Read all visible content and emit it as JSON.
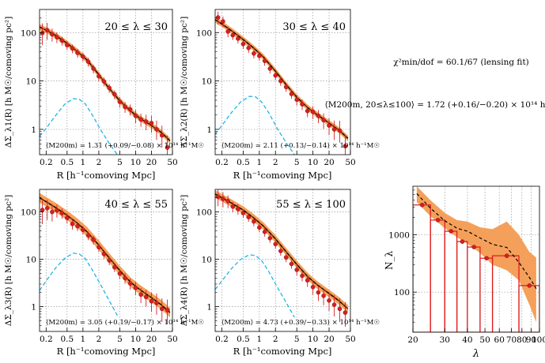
{
  "chart_data": [
    {
      "type": "line",
      "panel": "20 ≤ λ ≤ 30",
      "xlabel": "R [h⁻¹comoving Mpc]",
      "ylabel": "ΔΣ_λ1(R) [h M☉/comoving pc²]",
      "annotation": "⟨M200m⟩ = 1.31 (+0.09/−0.08) × 10¹⁴ h⁻¹M☉",
      "xscale": "log",
      "yscale": "log",
      "xlim": [
        0.15,
        50
      ],
      "ylim": [
        0.3,
        300
      ],
      "xticks": [
        "0.2",
        "0.5",
        "1",
        "2",
        "5",
        "10",
        "20",
        "50"
      ],
      "yticks": [
        "1",
        "10",
        "100"
      ],
      "grid": true,
      "points": {
        "x": [
          0.17,
          0.21,
          0.26,
          0.32,
          0.4,
          0.5,
          0.63,
          0.79,
          1.0,
          1.26,
          1.58,
          2.0,
          2.5,
          3.16,
          3.98,
          5.0,
          6.3,
          7.9,
          10,
          12.6,
          15.8,
          20,
          25,
          31.6,
          40
        ],
        "y": [
          98,
          112,
          92,
          80,
          68,
          55,
          47,
          38,
          32,
          25,
          18,
          12.5,
          9.8,
          7.2,
          5.3,
          3.7,
          2.9,
          2.6,
          1.9,
          1.6,
          1.45,
          1.35,
          1.0,
          0.75,
          0.42
        ],
        "err_lo": [
          0.25,
          0.2,
          0.15,
          0.12,
          0.1,
          0.1,
          0.1,
          0.1,
          0.1,
          0.1,
          0.1,
          0.1,
          0.1,
          0.1,
          0.1,
          0.12,
          0.12,
          0.13,
          0.15,
          0.15,
          0.18,
          0.2,
          0.22,
          0.25,
          0.35
        ],
        "err_hi": [
          0.2,
          0.15,
          0.12,
          0.1,
          0.08,
          0.08,
          0.08,
          0.08,
          0.08,
          0.08,
          0.08,
          0.08,
          0.08,
          0.08,
          0.08,
          0.1,
          0.1,
          0.1,
          0.12,
          0.12,
          0.14,
          0.15,
          0.18,
          0.2,
          0.25
        ]
      },
      "model": {
        "x": [
          0.15,
          0.2,
          0.3,
          0.5,
          0.8,
          1.2,
          2,
          3,
          5,
          8,
          12,
          20,
          30,
          45
        ],
        "y": [
          130,
          112,
          88,
          60,
          40,
          27,
          13.5,
          7.5,
          3.9,
          2.4,
          1.7,
          1.2,
          0.88,
          0.58
        ]
      },
      "band_width_dex": 0.06,
      "miscentering": {
        "x": [
          0.15,
          0.2,
          0.3,
          0.45,
          0.65,
          0.85,
          1.1,
          1.5,
          2.2,
          3.2,
          4.5
        ],
        "y": [
          0.72,
          1.05,
          1.9,
          3.3,
          4.3,
          4.2,
          3.4,
          2.0,
          0.95,
          0.5,
          0.3
        ]
      }
    },
    {
      "type": "line",
      "panel": "30 ≤ λ ≤ 40",
      "xlabel": "R [h⁻¹comoving Mpc]",
      "ylabel": "ΔΣ_λ2(R) [h M☉/comoving pc²]",
      "annotation": "⟨M200m⟩ = 2.11 (+0.13/−0.14) × 10¹⁴ h⁻¹M☉",
      "xscale": "log",
      "yscale": "log",
      "xlim": [
        0.15,
        50
      ],
      "ylim": [
        0.3,
        300
      ],
      "xticks": [
        "0.2",
        "0.5",
        "1",
        "2",
        "5",
        "10",
        "20",
        "50"
      ],
      "yticks": [
        "1",
        "10",
        "100"
      ],
      "grid": true,
      "points": {
        "x": [
          0.17,
          0.21,
          0.26,
          0.32,
          0.4,
          0.5,
          0.63,
          0.79,
          1.0,
          1.26,
          1.58,
          2.0,
          2.5,
          3.16,
          3.98,
          5.0,
          6.3,
          7.9,
          10,
          12.6,
          15.8,
          20,
          25,
          31.6,
          40
        ],
        "y": [
          205,
          170,
          105,
          88,
          75,
          58,
          48,
          37,
          33,
          26,
          18,
          13,
          10,
          7.5,
          5.4,
          4.1,
          3.3,
          2.4,
          2.3,
          1.9,
          1.55,
          1.2,
          1.0,
          0.95,
          0.45
        ],
        "err_lo": [
          0.15,
          0.12,
          0.12,
          0.1,
          0.1,
          0.1,
          0.1,
          0.1,
          0.1,
          0.1,
          0.1,
          0.1,
          0.1,
          0.1,
          0.1,
          0.12,
          0.12,
          0.13,
          0.15,
          0.15,
          0.18,
          0.2,
          0.22,
          0.25,
          0.3
        ],
        "err_hi": [
          0.12,
          0.1,
          0.1,
          0.08,
          0.08,
          0.08,
          0.08,
          0.08,
          0.08,
          0.08,
          0.08,
          0.08,
          0.08,
          0.08,
          0.08,
          0.1,
          0.1,
          0.1,
          0.12,
          0.12,
          0.14,
          0.15,
          0.18,
          0.2,
          0.22
        ]
      },
      "model": {
        "x": [
          0.15,
          0.2,
          0.3,
          0.5,
          0.8,
          1.2,
          2,
          3,
          5,
          8,
          12,
          20,
          30,
          45
        ],
        "y": [
          185,
          150,
          110,
          72,
          47,
          31,
          16,
          9,
          4.6,
          2.8,
          2.0,
          1.35,
          0.98,
          0.65
        ]
      },
      "band_width_dex": 0.06,
      "miscentering": {
        "x": [
          0.15,
          0.2,
          0.3,
          0.45,
          0.65,
          0.85,
          1.1,
          1.5,
          2.2,
          3.2,
          4.5
        ],
        "y": [
          0.8,
          1.2,
          2.2,
          3.7,
          4.8,
          4.7,
          3.7,
          2.2,
          1.0,
          0.52,
          0.3
        ]
      }
    },
    {
      "type": "line",
      "panel": "40 ≤ λ ≤ 55",
      "xlabel": "R [h⁻¹comoving Mpc]",
      "ylabel": "ΔΣ_λ3(R) [h M☉/comoving pc²]",
      "annotation": "⟨M200m⟩ = 3.05 (+0.19/−0.17) × 10¹⁴ h⁻¹M☉",
      "xscale": "log",
      "yscale": "log",
      "xlim": [
        0.15,
        50
      ],
      "ylim": [
        0.3,
        300
      ],
      "xticks": [
        "0.2",
        "0.5",
        "1",
        "2",
        "5",
        "10",
        "20",
        "50"
      ],
      "yticks": [
        "1",
        "10",
        "100"
      ],
      "grid": true,
      "points": {
        "x": [
          0.17,
          0.21,
          0.26,
          0.32,
          0.4,
          0.5,
          0.63,
          0.79,
          1.0,
          1.26,
          1.58,
          2.0,
          2.5,
          3.16,
          3.98,
          5.0,
          6.3,
          7.9,
          10,
          12.6,
          15.8,
          20,
          25,
          31.6,
          40
        ],
        "y": [
          110,
          120,
          100,
          108,
          95,
          75,
          56,
          50,
          42,
          32,
          26,
          18,
          13,
          9.5,
          6.8,
          5.0,
          4.0,
          3.1,
          2.5,
          1.8,
          1.6,
          1.3,
          1.2,
          0.9,
          0.85
        ],
        "err_lo": [
          0.3,
          0.25,
          0.2,
          0.15,
          0.12,
          0.12,
          0.12,
          0.1,
          0.1,
          0.1,
          0.1,
          0.1,
          0.1,
          0.1,
          0.1,
          0.12,
          0.12,
          0.13,
          0.15,
          0.18,
          0.2,
          0.22,
          0.25,
          0.28,
          0.3
        ],
        "err_hi": [
          0.2,
          0.18,
          0.15,
          0.12,
          0.1,
          0.1,
          0.1,
          0.08,
          0.08,
          0.08,
          0.08,
          0.08,
          0.08,
          0.08,
          0.08,
          0.1,
          0.1,
          0.1,
          0.12,
          0.14,
          0.15,
          0.18,
          0.2,
          0.22,
          0.22
        ]
      },
      "model": {
        "x": [
          0.15,
          0.2,
          0.3,
          0.5,
          0.8,
          1.2,
          2,
          3,
          5,
          8,
          12,
          20,
          30,
          45
        ],
        "y": [
          200,
          165,
          125,
          85,
          57,
          38,
          20,
          11.5,
          5.8,
          3.3,
          2.3,
          1.55,
          1.12,
          0.75
        ]
      },
      "band_width_dex": 0.1,
      "miscentering": {
        "x": [
          0.15,
          0.2,
          0.3,
          0.45,
          0.65,
          0.85,
          1.1,
          1.5,
          2.2,
          3.2,
          4.5
        ],
        "y": [
          2.2,
          3.5,
          6.5,
          10.5,
          13.5,
          13.0,
          10.5,
          6.0,
          2.8,
          1.3,
          0.65
        ]
      }
    },
    {
      "type": "line",
      "panel": "55 ≤ λ ≤ 100",
      "xlabel": "R [h⁻¹comoving Mpc]",
      "ylabel": "ΔΣ_λ4(R) [h M☉/comoving pc²]",
      "annotation": "⟨M200m⟩ = 4.73 (+0.39/−0.33) × 10¹⁴ h⁻¹M☉",
      "xscale": "log",
      "yscale": "log",
      "xlim": [
        0.15,
        50
      ],
      "ylim": [
        0.3,
        300
      ],
      "xticks": [
        "0.2",
        "0.5",
        "1",
        "2",
        "5",
        "10",
        "20",
        "50"
      ],
      "yticks": [
        "1",
        "10",
        "100"
      ],
      "grid": true,
      "points": {
        "x": [
          0.17,
          0.21,
          0.26,
          0.32,
          0.4,
          0.5,
          0.63,
          0.79,
          1.0,
          1.26,
          1.58,
          2.0,
          2.5,
          3.16,
          3.98,
          5.0,
          6.3,
          7.9,
          10,
          12.6,
          15.8,
          20,
          25,
          31.6,
          40
        ],
        "y": [
          210,
          190,
          170,
          130,
          115,
          95,
          78,
          63,
          47,
          38,
          28,
          21,
          15,
          11,
          8,
          6,
          4.5,
          3.6,
          2.6,
          2.0,
          1.7,
          1.35,
          1.1,
          0.9,
          0.75
        ],
        "err_lo": [
          0.2,
          0.18,
          0.15,
          0.12,
          0.12,
          0.1,
          0.1,
          0.1,
          0.1,
          0.1,
          0.1,
          0.1,
          0.1,
          0.1,
          0.1,
          0.12,
          0.12,
          0.14,
          0.16,
          0.18,
          0.2,
          0.22,
          0.25,
          0.28,
          0.3
        ],
        "err_hi": [
          0.15,
          0.14,
          0.12,
          0.1,
          0.1,
          0.08,
          0.08,
          0.08,
          0.08,
          0.08,
          0.08,
          0.08,
          0.08,
          0.08,
          0.08,
          0.1,
          0.1,
          0.1,
          0.12,
          0.14,
          0.15,
          0.18,
          0.2,
          0.22,
          0.22
        ]
      },
      "model": {
        "x": [
          0.15,
          0.2,
          0.3,
          0.5,
          0.8,
          1.2,
          2,
          3,
          5,
          8,
          12,
          20,
          30,
          45
        ],
        "y": [
          240,
          200,
          155,
          110,
          74,
          50,
          27,
          15.5,
          7.8,
          4.3,
          2.9,
          1.9,
          1.35,
          0.9
        ]
      },
      "band_width_dex": 0.08,
      "miscentering": {
        "x": [
          0.15,
          0.2,
          0.3,
          0.45,
          0.65,
          0.85,
          1.1,
          1.5,
          2.2,
          3.2,
          4.5
        ],
        "y": [
          2.3,
          3.5,
          6.3,
          10.0,
          12.5,
          12.0,
          9.5,
          5.5,
          2.5,
          1.2,
          0.6
        ]
      }
    },
    {
      "type": "bar",
      "panel": "richness function",
      "xlabel": "λ",
      "ylabel": "N_λ",
      "xscale": "log",
      "yscale": "log",
      "xlim": [
        20,
        100
      ],
      "ylim": [
        20,
        7000
      ],
      "xticks": [
        "20",
        "30",
        "40",
        "50",
        "60",
        "70",
        "80",
        "90",
        "100"
      ],
      "yticks": [
        "100",
        "1000"
      ],
      "grid": true,
      "bins": [
        {
          "lo": 20,
          "hi": 25,
          "value": 3300
        },
        {
          "lo": 25,
          "hi": 30,
          "value": 1800
        },
        {
          "lo": 30,
          "hi": 35,
          "value": 1150
        },
        {
          "lo": 35,
          "hi": 40,
          "value": 760
        },
        {
          "lo": 40,
          "hi": 47,
          "value": 610
        },
        {
          "lo": 47,
          "hi": 55,
          "value": 390
        },
        {
          "lo": 55,
          "hi": 77,
          "value": 430
        },
        {
          "lo": 77,
          "hi": 100,
          "value": 130
        }
      ],
      "points": {
        "x": [
          22.5,
          27.5,
          32.5,
          37.5,
          43.5,
          51,
          66,
          88
        ],
        "y": [
          3300,
          1800,
          1150,
          760,
          610,
          390,
          430,
          130
        ]
      },
      "model": {
        "x": [
          21,
          25,
          30,
          35,
          40,
          47,
          55,
          66,
          77,
          88,
          96
        ],
        "y": [
          5200,
          2900,
          1750,
          1300,
          1150,
          880,
          680,
          600,
          330,
          180,
          115
        ]
      },
      "band": {
        "x": [
          21,
          25,
          30,
          35,
          40,
          47,
          55,
          66,
          77,
          88,
          96
        ],
        "lo": [
          3700,
          2100,
          1300,
          900,
          700,
          480,
          300,
          240,
          160,
          60,
          30
        ],
        "hi": [
          7000,
          4000,
          2400,
          1800,
          1700,
          1350,
          1250,
          1700,
          1000,
          500,
          400
        ]
      }
    }
  ],
  "text": {
    "chi2": "χ²min/dof = 60.1/67 (lensing fit)",
    "mass": "⟨M200m, 20≤λ≤100⟩ = 1.72 (+0.16/−0.20) × 10¹⁴ h⁻¹M☉"
  },
  "colors": {
    "band": "#f5a05a",
    "model_dark": "#7a3308",
    "dashed": "#000000",
    "miscentering": "#1fb5e8",
    "points": "#d62020",
    "bars": "#dd1818",
    "grid": "#9a9a9a"
  }
}
